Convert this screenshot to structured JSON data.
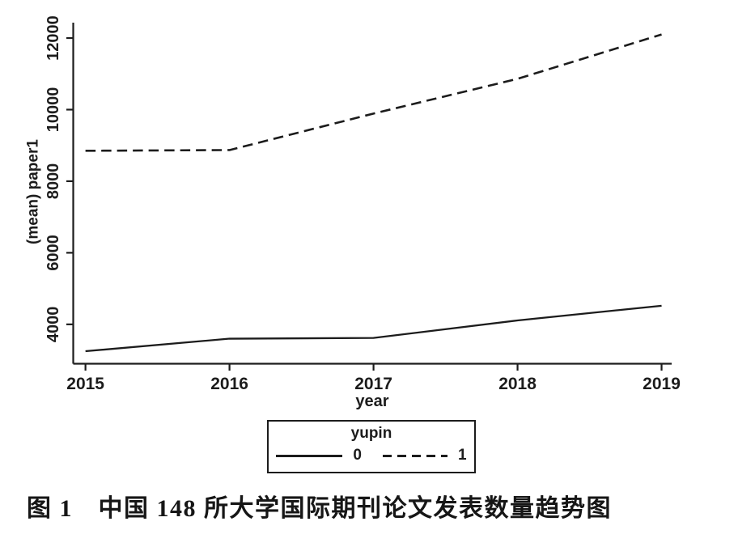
{
  "figure": {
    "caption": "图 1　中国 148 所大学国际期刊论文发表数量趋势图"
  },
  "chart_data": {
    "type": "line",
    "title": "",
    "xlabel": "year",
    "ylabel": "(mean) paper1",
    "x": [
      2015,
      2016,
      2017,
      2018,
      2019
    ],
    "series": [
      {
        "name": "0",
        "style": "solid",
        "values": [
          3250,
          3600,
          3620,
          4110,
          4520
        ]
      },
      {
        "name": "1",
        "style": "dashed",
        "values": [
          8850,
          8870,
          9890,
          10860,
          12100
        ]
      }
    ],
    "xticks": [
      "2015",
      "2016",
      "2017",
      "2018",
      "2019"
    ],
    "yticks": [
      4000,
      6000,
      8000,
      10000,
      12000
    ],
    "xlim": [
      2014.915,
      2019.07
    ],
    "ylim": [
      2900,
      12430
    ],
    "grid": false,
    "legend": {
      "title": "yupin",
      "position": "bottom-center",
      "entries": [
        {
          "label": "0",
          "style": "solid"
        },
        {
          "label": "1",
          "style": "dashed"
        }
      ]
    },
    "line_color": "#1c1c1c",
    "background_color": "#ffffff"
  }
}
